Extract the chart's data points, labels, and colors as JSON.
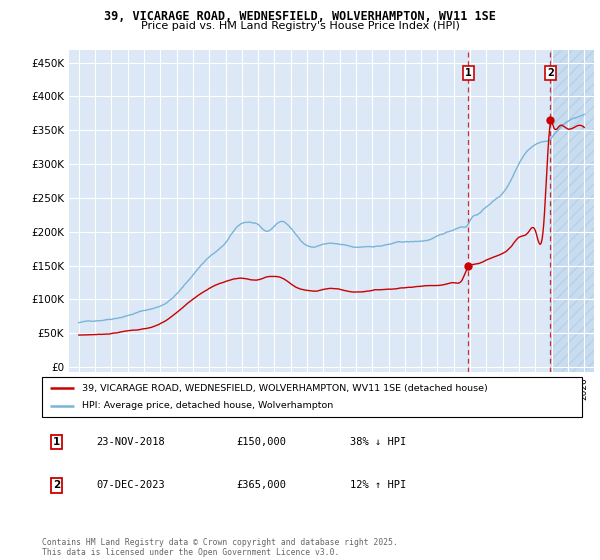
{
  "title": "39, VICARAGE ROAD, WEDNESFIELD, WOLVERHAMPTON, WV11 1SE",
  "subtitle": "Price paid vs. HM Land Registry's House Price Index (HPI)",
  "ylabel_ticks": [
    "£0",
    "£50K",
    "£100K",
    "£150K",
    "£200K",
    "£250K",
    "£300K",
    "£350K",
    "£400K",
    "£450K"
  ],
  "ytick_values": [
    0,
    50000,
    100000,
    150000,
    200000,
    250000,
    300000,
    350000,
    400000,
    450000
  ],
  "hpi_color": "#7ab4d8",
  "price_color": "#cc0000",
  "plot_bg": "#dce8f5",
  "plot_bg_future": "#c8d8f0",
  "legend_label_red": "39, VICARAGE ROAD, WEDNESFIELD, WOLVERHAMPTON, WV11 1SE (detached house)",
  "legend_label_blue": "HPI: Average price, detached house, Wolverhampton",
  "annotation1_date": "23-NOV-2018",
  "annotation1_price": "£150,000",
  "annotation1_hpi": "38% ↓ HPI",
  "annotation2_date": "07-DEC-2023",
  "annotation2_price": "£365,000",
  "annotation2_hpi": "12% ↑ HPI",
  "footer": "Contains HM Land Registry data © Crown copyright and database right 2025.\nThis data is licensed under the Open Government Licence v3.0.",
  "sale1_year": 2018.9,
  "sale1_value": 150000,
  "sale2_year": 2023.93,
  "sale2_value": 365000,
  "vline1_x": 2018.9,
  "vline2_x": 2023.93,
  "xlim_left": 1994.4,
  "xlim_right": 2026.6,
  "ylim_bottom": -8000,
  "ylim_top": 468000
}
